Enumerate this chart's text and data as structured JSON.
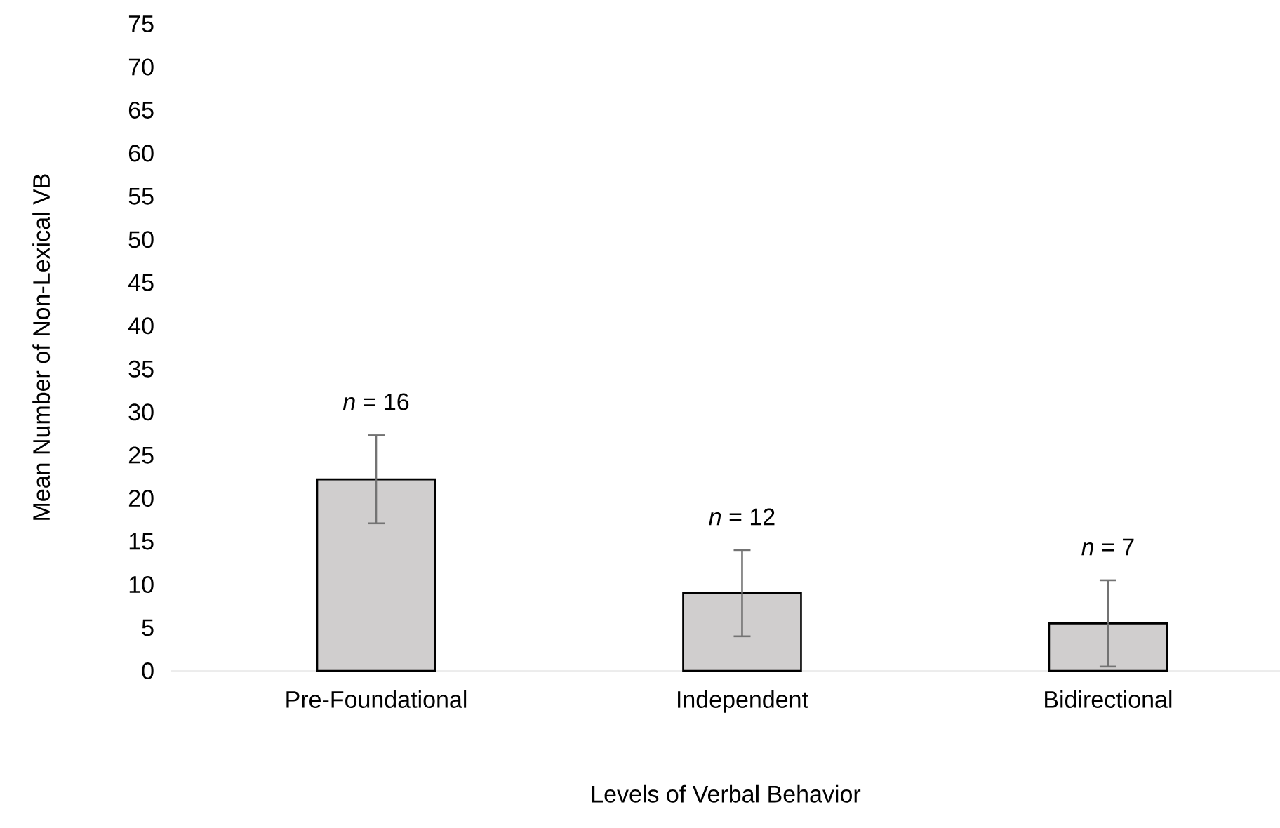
{
  "chart_data": {
    "type": "bar",
    "xlabel": "Levels of Verbal Behavior",
    "ylabel": "Mean Number of Non-Lexical VB",
    "categories": [
      "Pre-Foundational",
      "Independent",
      "Bidirectional"
    ],
    "values": [
      22.2,
      9,
      5.5
    ],
    "errors": [
      5.1,
      5,
      5
    ],
    "color": "#d0cece",
    "ylim": [
      0,
      75
    ],
    "yticks": [
      0,
      5,
      10,
      15,
      20,
      25,
      30,
      35,
      40,
      45,
      50,
      55,
      60,
      65,
      70,
      75
    ],
    "annotations": [
      "*n* = 16",
      "*n* = 12",
      "*n* = 7"
    ]
  }
}
